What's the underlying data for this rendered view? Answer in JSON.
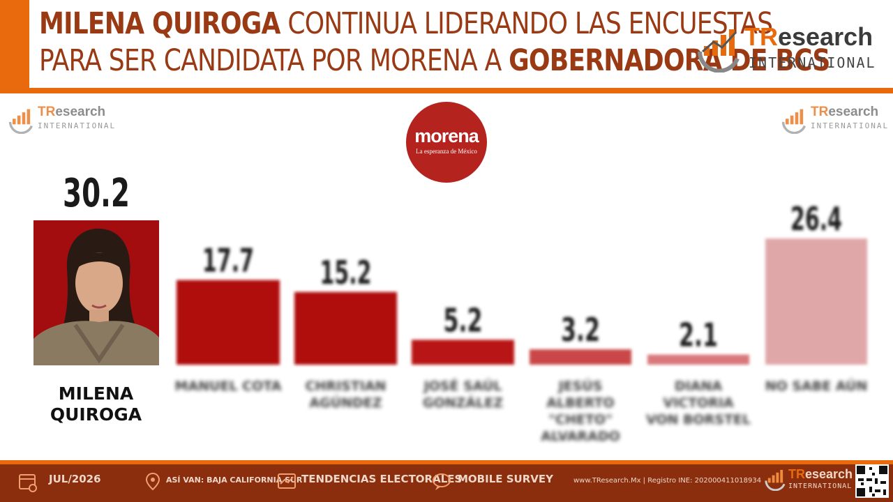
{
  "header": {
    "title_bold_1": "MILENA QUIROGA",
    "title_light_1": "CONTINUA LIDERANDO LAS ENCUESTAS",
    "title_light_2": "PARA SER CANDIDATA POR MORENA A",
    "title_bold_2": "GOBERNADORA DE BCS"
  },
  "logo": {
    "brand_tr": "TR",
    "brand_rest": "esearch",
    "brand_sub": "INTERNATIONAL"
  },
  "party": {
    "name": "morena",
    "slogan": "La esperanza de México"
  },
  "leader": {
    "value_label": "30.2",
    "name": "MILENA QUIROGA"
  },
  "chart_data": {
    "type": "bar",
    "categories": [
      "MILENA QUIROGA",
      "MANUEL COTA",
      "CHRISTIAN AGÚNDEZ",
      "JOSÉ SAÚL GONZÁLEZ",
      "JESÚS ALBERTO \"CHETO\" ALVARADO",
      "DIANA VICTORIA VON BORSTEL",
      "NO SABE AÚN"
    ],
    "values": [
      30.2,
      17.7,
      15.2,
      5.2,
      3.2,
      2.1,
      26.4
    ],
    "value_labels": [
      "30.2",
      "17.7",
      "15.2",
      "5.2",
      "3.2",
      "2.1",
      "26.4"
    ],
    "colors": [
      "#a30d10",
      "#b0070b",
      "#b0070b",
      "#b81418",
      "#c9474a",
      "#d9787b",
      "#e0a7a8"
    ],
    "title": "",
    "xlabel": "",
    "ylabel": "",
    "ylim": [
      0,
      30.2
    ],
    "grid": false,
    "legend": "none"
  },
  "categories_display": [
    {
      "lines": [
        "MANUEL COTA"
      ]
    },
    {
      "lines": [
        "CHRISTIAN",
        "AGÚNDEZ"
      ]
    },
    {
      "lines": [
        "JOSÉ SAÚL",
        "GONZÁLEZ"
      ]
    },
    {
      "lines": [
        "JESÚS ALBERTO",
        "\"CHETO\"",
        "ALVARADO"
      ]
    },
    {
      "lines": [
        "DIANA VICTORIA",
        "VON BORSTEL"
      ]
    },
    {
      "lines": [
        "NO SABE AÚN"
      ]
    }
  ],
  "footer": {
    "date": "JUL/2026",
    "location": "ASÍ VAN: BAJA CALIFORNIA SUR",
    "section": "TENDENCIAS ELECTORALES",
    "method": "MOBILE SURVEY",
    "web": "www.TResearch.Mx | Registro INE: 202000411018934",
    "icons": [
      "calendar-icon",
      "map-pin-icon",
      "chart-icon",
      "chat-bubble-icon"
    ]
  }
}
